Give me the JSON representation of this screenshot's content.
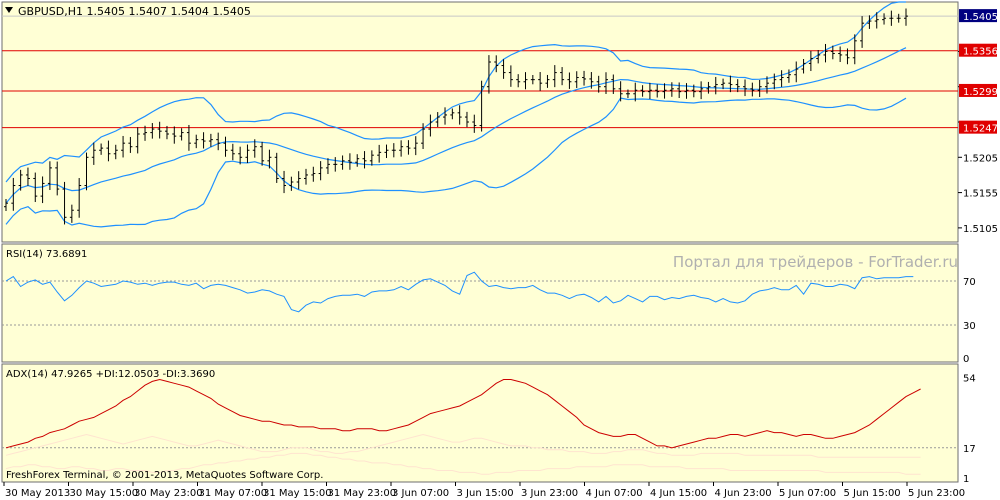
{
  "header": {
    "symbol_line": "GBPUSD,H1  1.5405 1.5407 1.5404 1.5405",
    "rsi_label": "RSI(14) 73.6891",
    "adx_label": "ADX(14) 47.9265 +DI:12.0503 -DI:3.3690",
    "watermark": "Портал для трейдеров - ForTrader.ru",
    "copyright": "FreshForex Terminal, © 2001-2013, MetaQuotes Software Corp."
  },
  "colors": {
    "background": "#FFFFD5",
    "frame": "#6E6E6E",
    "candles": "#000000",
    "bollinger": "#1E90FF",
    "levels": "#E00000",
    "rsi": "#1E90FF",
    "adx": "#CC0000",
    "plus_di": "#FFE4D0",
    "minus_di": "#FFE4D0",
    "grid_dotted": "#999999"
  },
  "chart_data": [
    {
      "type": "candlestick",
      "title": "GBPUSD,H1",
      "ylim": [
        1.5085,
        1.5425
      ],
      "ticks": [
        "1.5405",
        "1.5356",
        "1.5299",
        "1.5247",
        "1.5205",
        "1.5155",
        "1.5105"
      ],
      "price_axis": [
        1.5355,
        1.5305,
        1.5255,
        1.5205,
        1.5155,
        1.5105
      ],
      "current_price_label": "1.5405",
      "current_price": 1.5405,
      "levels": [
        {
          "label": "1.5356",
          "value": 1.5356
        },
        {
          "label": "1.5299",
          "value": 1.5299
        },
        {
          "label": "1.5247",
          "value": 1.5247
        }
      ],
      "x_labels": [
        "30 May 2013",
        "30 May 15:00",
        "30 May 23:00",
        "31 May 07:00",
        "31 May 15:00",
        "31 May 23:00",
        "3 Jun 07:00",
        "3 Jun 15:00",
        "3 Jun 23:00",
        "4 Jun 07:00",
        "4 Jun 15:00",
        "4 Jun 23:00",
        "5 Jun 07:00",
        "5 Jun 15:00",
        "5 Jun 23:00"
      ],
      "close": [
        1.514,
        1.5165,
        1.518,
        1.5175,
        1.515,
        1.5168,
        1.519,
        1.516,
        1.512,
        1.513,
        1.5165,
        1.5205,
        1.5215,
        1.5218,
        1.521,
        1.5215,
        1.5225,
        1.522,
        1.5238,
        1.524,
        1.5245,
        1.5242,
        1.5238,
        1.5235,
        1.524,
        1.5225,
        1.523,
        1.5228,
        1.523,
        1.5225,
        1.5215,
        1.521,
        1.5205,
        1.5215,
        1.522,
        1.52,
        1.5205,
        1.5175,
        1.5165,
        1.517,
        1.5175,
        1.518,
        1.5182,
        1.519,
        1.5195,
        1.5195,
        1.52,
        1.5198,
        1.5203,
        1.52,
        1.5208,
        1.5212,
        1.5215,
        1.5215,
        1.522,
        1.5218,
        1.5225,
        1.5245,
        1.5255,
        1.5262,
        1.5265,
        1.5268,
        1.5262,
        1.5255,
        1.525,
        1.5305,
        1.534,
        1.5335,
        1.5325,
        1.5315,
        1.5312,
        1.5315,
        1.5315,
        1.531,
        1.5315,
        1.5325,
        1.5315,
        1.5312,
        1.5318,
        1.5316,
        1.5312,
        1.5305,
        1.5315,
        1.5302,
        1.5295,
        1.5295,
        1.53,
        1.5298,
        1.53,
        1.5298,
        1.53,
        1.5302,
        1.5298,
        1.53,
        1.5298,
        1.5302,
        1.5305,
        1.5308,
        1.531,
        1.5308,
        1.5305,
        1.5302,
        1.53,
        1.5305,
        1.531,
        1.5315,
        1.5318,
        1.5322,
        1.533,
        1.5338,
        1.5345,
        1.535,
        1.5355,
        1.5352,
        1.535,
        1.5346,
        1.537,
        1.5395,
        1.5398,
        1.54,
        1.5402,
        1.5402,
        1.5402,
        1.5405
      ]
    },
    {
      "type": "line",
      "title": "RSI(14) 73.6891",
      "ylim": [
        0,
        100
      ],
      "ticks": [
        "70",
        "30",
        "0"
      ],
      "tick_values": [
        70,
        30,
        0
      ],
      "levels": [
        70,
        30
      ],
      "values": [
        70,
        74,
        65,
        69,
        71,
        67,
        69,
        60,
        52,
        57,
        64,
        70,
        68,
        65,
        66,
        67,
        70,
        69,
        67,
        68,
        66,
        68,
        69,
        69,
        67,
        66,
        68,
        63,
        66,
        67,
        66,
        64,
        62,
        59,
        60,
        62,
        61,
        58,
        56,
        44,
        42,
        48,
        51,
        50,
        54,
        56,
        57,
        57,
        58,
        56,
        60,
        61,
        61,
        62,
        65,
        62,
        67,
        71,
        72,
        69,
        66,
        61,
        58,
        75,
        78,
        70,
        65,
        66,
        64,
        63,
        64,
        64,
        66,
        62,
        59,
        59,
        57,
        54,
        57,
        58,
        55,
        51,
        56,
        50,
        52,
        57,
        54,
        51,
        56,
        56,
        53,
        55,
        54,
        56,
        57,
        55,
        54,
        51,
        54,
        51,
        50,
        52,
        58,
        61,
        62,
        64,
        62,
        62,
        66,
        58,
        68,
        67,
        65,
        65,
        67,
        66,
        63,
        73,
        74,
        72,
        73,
        73,
        73,
        74,
        74
      ]
    },
    {
      "type": "line",
      "title": "ADX(14) 47.9265 +DI:12.0503 -DI:3.3690",
      "ylim": [
        0,
        58
      ],
      "ticks": [
        "54",
        "17",
        "1"
      ],
      "tick_values": [
        54,
        17,
        1
      ],
      "levels": [
        17
      ],
      "series": [
        {
          "name": "ADX",
          "values": [
            17,
            18,
            19,
            20,
            22,
            23,
            25,
            26,
            27,
            29,
            31,
            32,
            33,
            35,
            37,
            39,
            42,
            44,
            47,
            50,
            52,
            53,
            52,
            51,
            50,
            49,
            47,
            45,
            43,
            40,
            38,
            36,
            34,
            33,
            32,
            31,
            31,
            30,
            29,
            29,
            28,
            28,
            28,
            27,
            27,
            27,
            26,
            26,
            27,
            27,
            27,
            26,
            26,
            27,
            28,
            29,
            31,
            33,
            35,
            36,
            37,
            38,
            39,
            41,
            43,
            45,
            48,
            51,
            53,
            53,
            52,
            51,
            49,
            47,
            45,
            42,
            39,
            36,
            33,
            29,
            27,
            25,
            24,
            23,
            23,
            24,
            24,
            22,
            20,
            18,
            18,
            17,
            18,
            19,
            20,
            21,
            22,
            22,
            23,
            24,
            24,
            23,
            24,
            25,
            26,
            25,
            25,
            24,
            23,
            24,
            24,
            23,
            22,
            22,
            23,
            24,
            25,
            27,
            29,
            32,
            35,
            38,
            41,
            44,
            46,
            48
          ]
        },
        {
          "name": "+DI",
          "values": [
            13,
            14,
            15,
            16,
            17,
            18,
            19,
            20,
            21,
            22,
            23,
            24,
            23,
            22,
            21,
            20,
            19,
            20,
            21,
            22,
            23,
            22,
            21,
            20,
            19,
            18,
            18,
            19,
            20,
            21,
            20,
            19,
            18,
            17,
            16,
            15,
            15,
            15,
            16,
            17,
            17,
            17,
            16,
            15,
            15,
            14,
            14,
            15,
            15,
            16,
            17,
            18,
            19,
            20,
            21,
            22,
            23,
            24,
            23,
            22,
            21,
            20,
            20,
            21,
            22,
            22,
            21,
            20,
            19,
            18,
            18,
            18,
            17,
            17,
            16,
            16,
            16,
            15,
            15,
            15,
            14,
            14,
            14,
            15,
            15,
            16,
            16,
            16,
            15,
            14,
            14,
            13,
            13,
            13,
            13,
            14,
            14,
            14,
            14,
            14,
            14,
            13,
            13,
            13,
            13,
            13,
            13,
            13,
            13,
            13,
            13,
            12,
            12,
            12,
            12,
            12,
            12,
            12,
            12,
            12,
            12,
            12,
            12,
            12,
            12,
            12
          ]
        },
        {
          "name": "-DI",
          "values": [
            6,
            7,
            7,
            8,
            8,
            7,
            7,
            6,
            6,
            7,
            7,
            6,
            6,
            5,
            5,
            6,
            6,
            5,
            5,
            5,
            4,
            4,
            5,
            5,
            6,
            6,
            7,
            8,
            8,
            9,
            9,
            10,
            10,
            11,
            11,
            12,
            12,
            13,
            13,
            14,
            14,
            14,
            13,
            13,
            12,
            12,
            11,
            11,
            10,
            10,
            9,
            9,
            9,
            8,
            8,
            7,
            7,
            6,
            6,
            5,
            5,
            5,
            4,
            4,
            4,
            3,
            3,
            4,
            4,
            4,
            5,
            5,
            5,
            5,
            6,
            6,
            6,
            6,
            7,
            7,
            7,
            7,
            7,
            8,
            8,
            8,
            8,
            8,
            7,
            7,
            7,
            7,
            7,
            6,
            6,
            6,
            6,
            6,
            6,
            5,
            5,
            5,
            5,
            5,
            5,
            5,
            5,
            5,
            5,
            5,
            5,
            5,
            4,
            4,
            4,
            4,
            4,
            4,
            4,
            4,
            4,
            4,
            4,
            3,
            3,
            3
          ]
        }
      ]
    }
  ]
}
